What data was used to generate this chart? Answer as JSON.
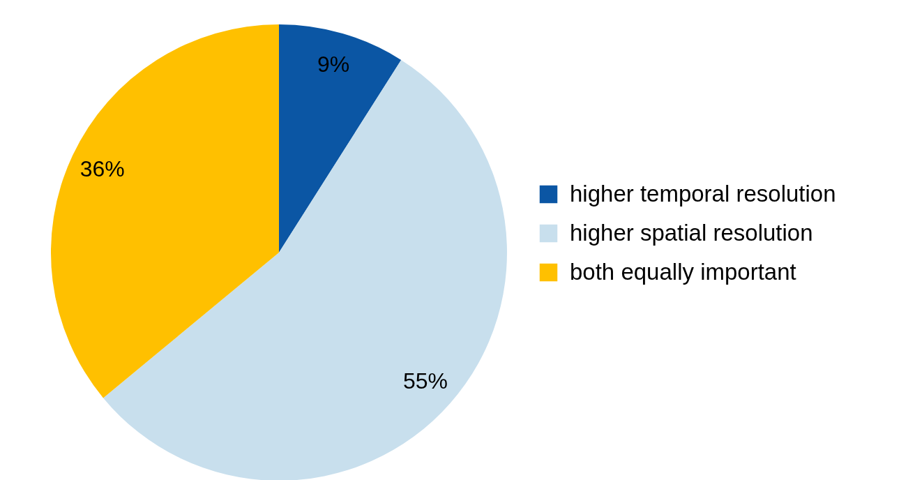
{
  "chart_data": {
    "type": "pie",
    "categories": [
      "higher temporal resolution",
      "higher spatial resolution",
      "both equally important"
    ],
    "values": [
      9,
      55,
      36
    ],
    "colors": [
      "#0b56a4",
      "#c8dfed",
      "#ffc000"
    ],
    "value_labels": [
      "9%",
      "55%",
      "36%"
    ],
    "legend": "right"
  }
}
